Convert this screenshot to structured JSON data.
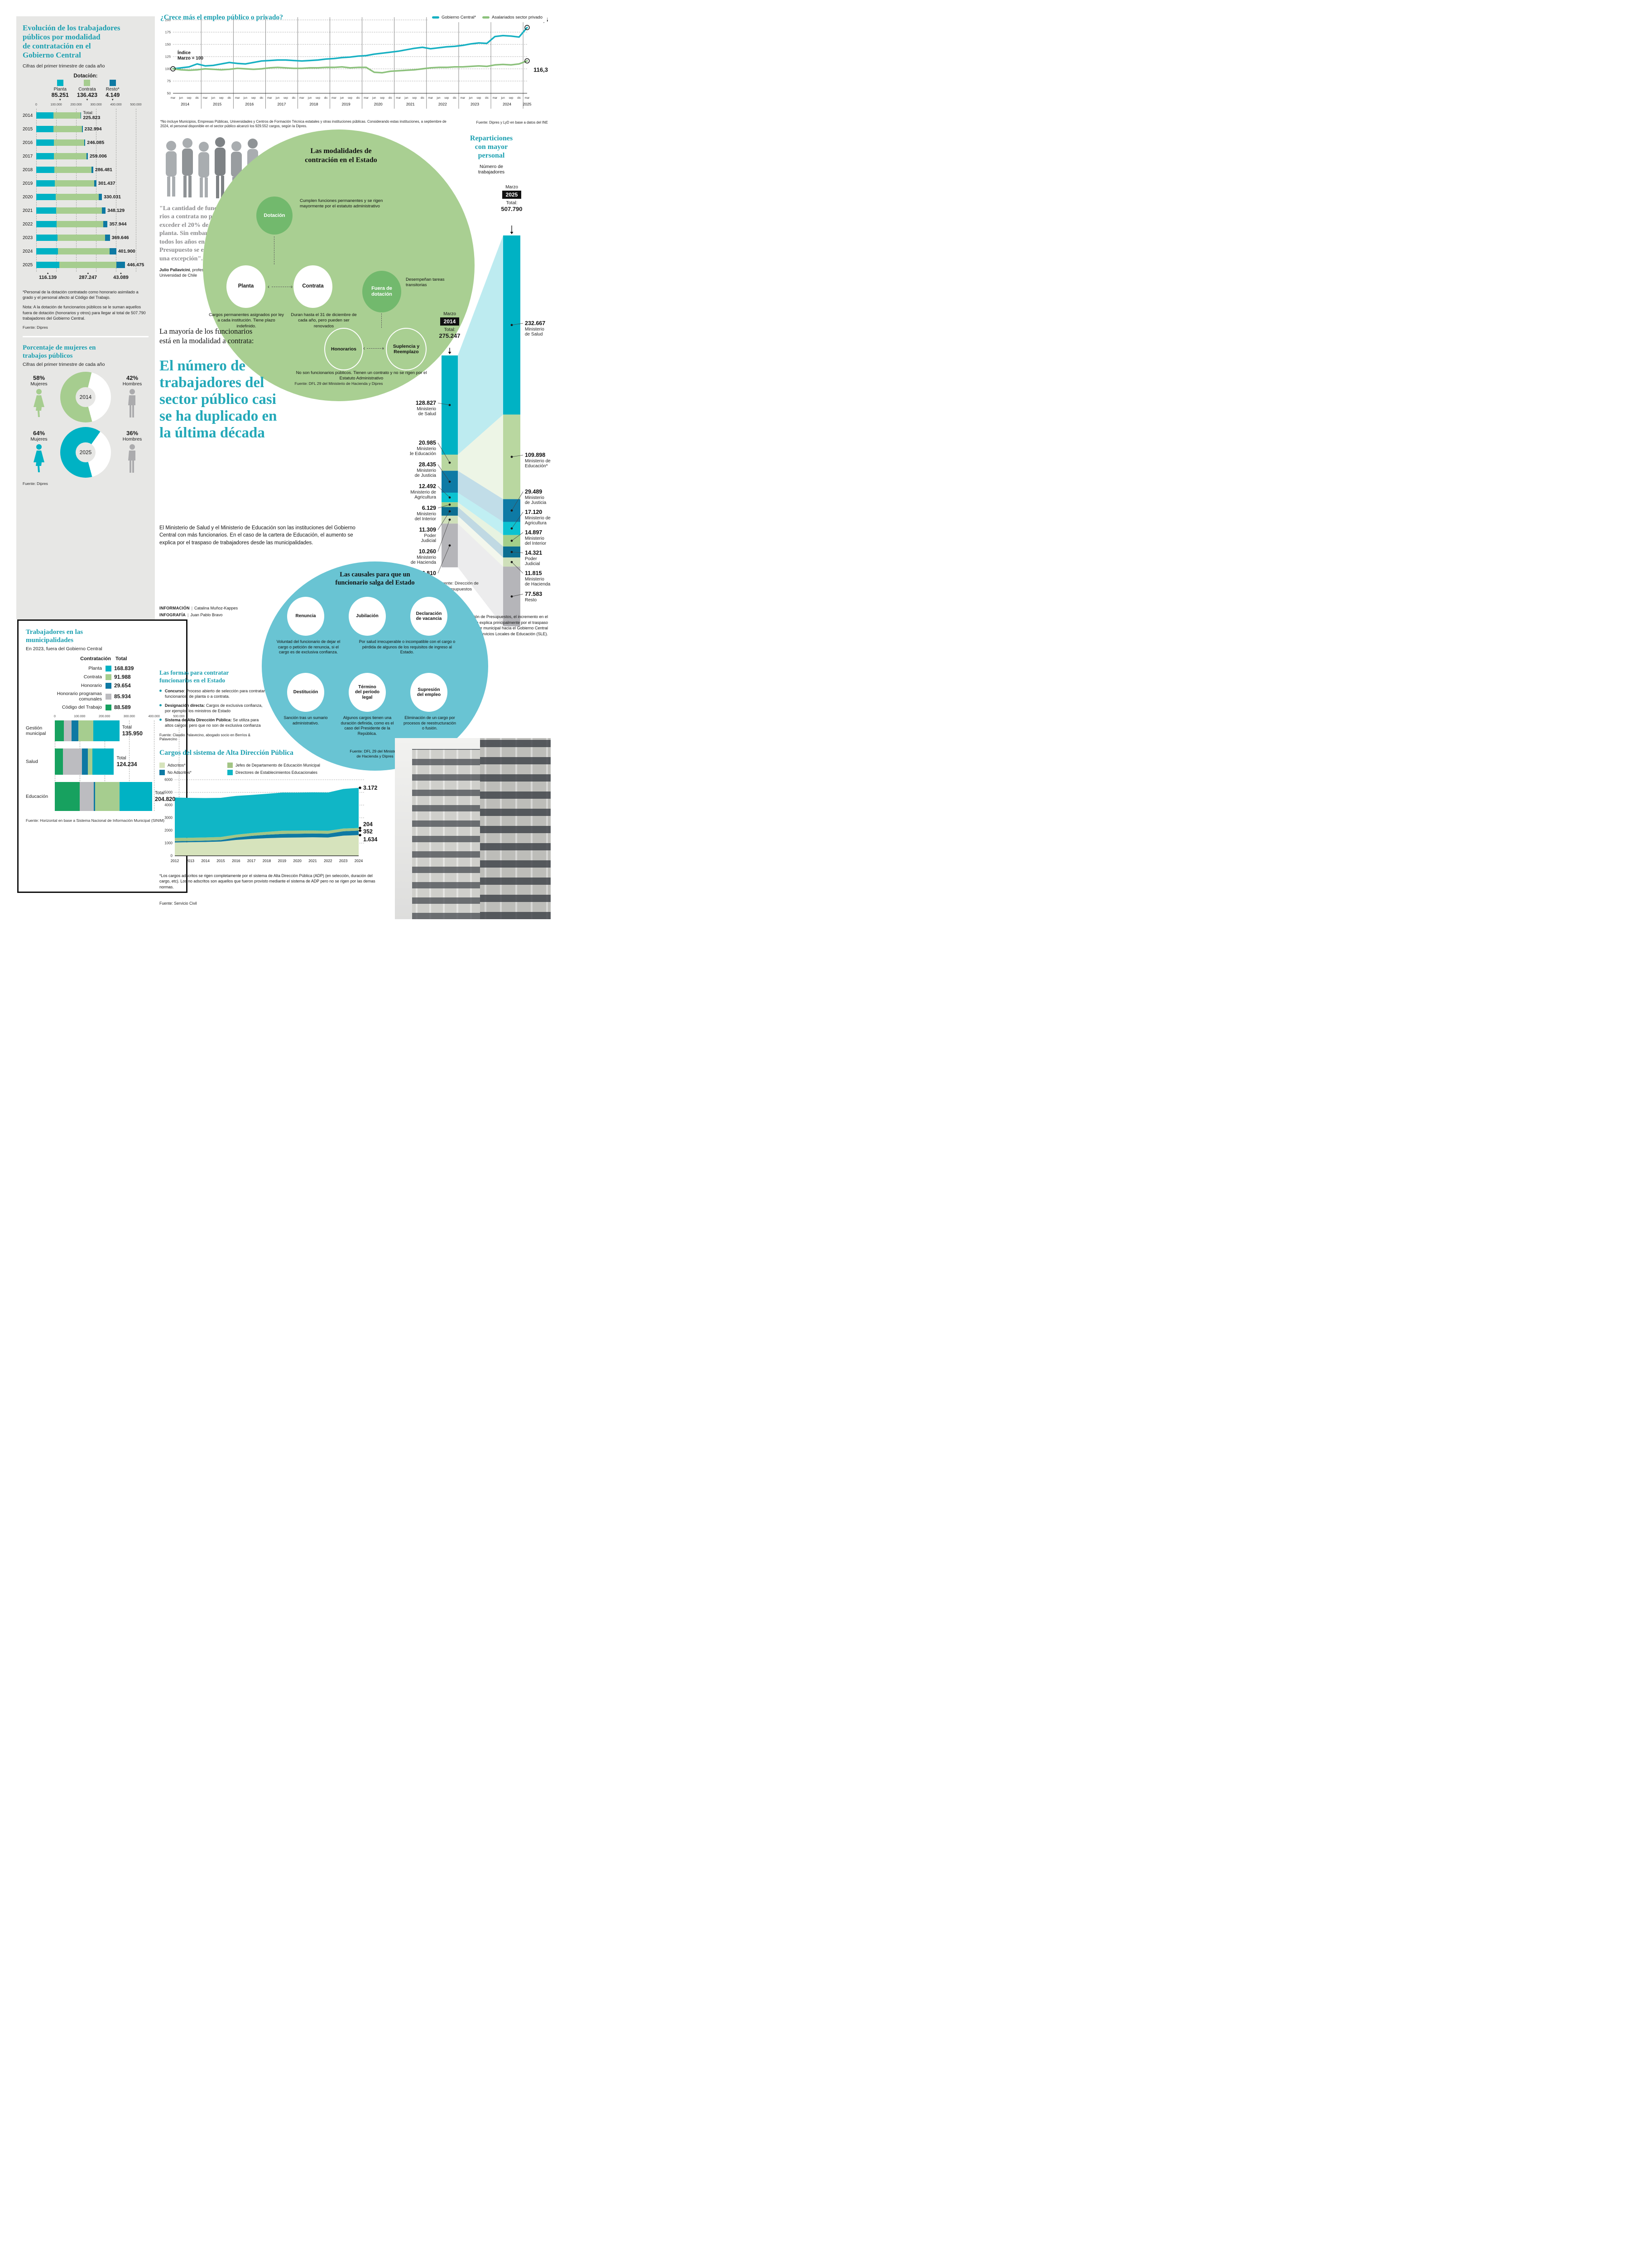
{
  "palette": {
    "teal": "#00b2c4",
    "teal_line": "#16b0c2",
    "green": "#a6cd8f",
    "dark_blue": "#0e79a3",
    "cyan": "#0cc2d1",
    "olive": "#a3c585",
    "pale_green": "#d6e3bc",
    "gray_seg": "#bcbcc0",
    "green_code": "#17a15f",
    "title_teal": "#1b9fb0",
    "blob_green": "#a9cf92",
    "blob_teal": "#69c4d3"
  },
  "evolucion": {
    "title": "Evolución de los trabajadores\npúblicos por modalidad\nde contratación en el\nGobierno Central",
    "subtitle": "Cifras del primer trimestre de cada año",
    "legend_title": "Dotación:",
    "total_label": "Total:",
    "footnote1": "*Personal de la dotación contratado como honorario asimilado a grado y el personal afecto al Código del Trabajo.",
    "footnote2": "Nota: A la dotación de funcionarios públicos se le suman aquellos fuera de dotación (honorarios y otros) para llegar al total de 507.790 trabajadores del Gobierno Central.",
    "source": "Fuente: Dipres"
  },
  "mujeres": {
    "title": "Porcentaje de mujeres en\ntrabajos públicos",
    "subtitle": "Cifras del primer trimestre de cada año",
    "source": "Fuente: Dipres",
    "d2014": {
      "pct_m": "58%",
      "lab_m": "Mujeres",
      "pct_h": "42%",
      "lab_h": "Hombres",
      "year": "2014"
    },
    "d2025": {
      "pct_m": "64%",
      "lab_m": "Mujeres",
      "pct_h": "36%",
      "lab_h": "Hombres",
      "year": "2025"
    }
  },
  "empleo": {
    "title": "¿Crece más el empleo público o privado?",
    "legend": [
      "Gobierno Central*",
      "Asalariados sector privado"
    ],
    "index_label": "Índice\nMarzo = 100",
    "footnote": "*No incluye Municipios, Empresas Públicas, Universidades y Centros de Formación Técnica estatales y otras instituciones públicas. Considerando estas instituciones, a septiembre de 2024, el personal disponible en el sector público alcanzó los 929.552 cargos, según la Dipres.",
    "source": "Fuente: Dipres y LyD en base a datos del INE"
  },
  "quote": {
    "text": "\"La cantidad de funciona-\nrios a contrata no puede\nexceder el 20% de los de\nplanta. Sin embargo,\ntodos los años en la Ley de\nPresupuesto se establece\nuna excepción\".",
    "author": "Julio Pallavicini",
    "role": ", profesor de Derecho Administrativo de la Universidad de Chile"
  },
  "modalidades": {
    "title": "Las modalidades de\ncontración en el Estado",
    "dotacion": "Dotación",
    "dotacion_desc": "Cumplen funciones permanentes y se rigen mayormente por el estatuto administrativo",
    "planta": "Planta",
    "planta_desc": "Cargos permanentes asignados por ley a cada institución. Tiene plazo indefinido.",
    "contrata": "Contrata",
    "contrata_desc": "Duran hasta el 31 de diciembre de cada año, pero pueden ser renovados",
    "fuera": "Fuera de\ndotación",
    "fuera_desc": "Desempeñan tareas transitorias",
    "honorarios": "Honorarios",
    "suplencia": "Suplencia y\nReemplazo",
    "no_func": "No son funcionarios públicos. Tienen un contrato y no se rigen por el Estatuto Administrativo",
    "source": "Fuente: DFL 29 del Ministerio de Hacienda y Dipres"
  },
  "headline": {
    "kicker": "La mayoría de los funcionarios\nestá en la modalidad a contrata:",
    "title": "El número de\ntrabajadores del\nsector público casi\nse ha duplicado en\nla última década",
    "body": "El Ministerio de Salud y el Ministerio de Educación son las instituciones del Gobierno Central con más funcionarios. En el caso de la cartera de Educación, el aumento se explica por el traspaso de trabajadores desde las municipalidades.",
    "credit1_label": "INFORMACIÓN",
    "credit1_sep": "|",
    "credit1": "Catalina Muñoz-Kappes",
    "credit2_label": "INFOGRAFÍA",
    "credit2_sep": "|",
    "credit2": "Juan Pablo Bravo"
  },
  "reparticiones": {
    "title": "Reparticiones\ncon mayor\npersonal",
    "unit": "Número de\ntrabajadores",
    "month": "Marzo",
    "total_label": "Total:",
    "source": "Fuente: Dirección de\nPresupuestos",
    "footnote": "*Según la Dirección de Presupuestos, el incremento en el Ministerio de Educación se explica principalmente por el traspaso de cargos desde el sector municipal hacia el Gobierno Central por la creación de los Servicios Locales de Educación (SLE)."
  },
  "causales": {
    "title": "Las causales para que un\nfuncionario salga del Estado",
    "items": [
      {
        "label": "Renuncia"
      },
      {
        "label": "Jubilación"
      },
      {
        "label": "Declaración\nde vacancia"
      },
      {
        "label": "Destitución"
      },
      {
        "label": "Término\ndel período\nlegal"
      },
      {
        "label": "Supresión\ndel empleo"
      }
    ],
    "desc_renuncia": "Voluntad del funcionario de dejar el cargo o petición de renuncia, si el cargo es de exclusiva confianza.",
    "desc_vacancia": "Por salud irrecuperable o incompatible con el cargo o pérdida de algunos de los requisitos de ingreso al Estado.",
    "desc_destitucion": "Sanción tras un sumario administrativo.",
    "desc_termino": "Algunos cargos tienen una duración definida, como es el caso del Presidente de la República.",
    "desc_supresion": "Eliminación de un cargo por procesos de reestructura­ción o fusión.",
    "source": "Fuente: DFL 29 del Ministerio\nde Hacienda y Dipres"
  },
  "municipalidades": {
    "title": "Trabajadores en las\nmunicipalidades",
    "subtitle": "En 2023, fuera del Gobierno Central",
    "col1": "Contratación",
    "col2": "Total",
    "total_label": "Total",
    "source": "Fuente: Horizontal en base a Sistema Nacional de Información Municipal (SINIM)"
  },
  "formas": {
    "title": "Las formas para contratar\nfuncionarios en el Estado",
    "bullets": [
      {
        "lead": "Concurso",
        "text": ": Proceso abierto de selección para contratar funcionarios, de planta o a contrata."
      },
      {
        "lead": "Designación directa:",
        "text": " Cargos de exclusiva confianza, por ejemplo, los ministros de Estado"
      },
      {
        "lead": "Sistema de Alta Dirección Pública:",
        "text": " Se utiliza para altos cargos, pero que no son de exclusiva confianza"
      }
    ],
    "source": "Fuente: Claudio Palavecino, abogado socio en Berríos & Palavecino"
  },
  "adp": {
    "title": "Cargos del sistema de Alta Dirección Pública",
    "footnote": "*Los cargos adscritos se rigen completamente por el sistema de Alta Dirección Pública (ADP) (en selección, duración del cargo, etc). Los no adscritos son aquellos que fueron provisto mediante el sistema de ADP pero no se rigen por las demas normas.",
    "source": "Fuente: Servicio Civil"
  },
  "chart_data": [
    {
      "id": "evolucion",
      "type": "bar",
      "stacked": true,
      "orientation": "horizontal",
      "title": "Evolución de los trabajadores públicos por modalidad de contratación en el Gobierno Central",
      "categories": [
        "2014",
        "2015",
        "2016",
        "2017",
        "2018",
        "2019",
        "2020",
        "2021",
        "2022",
        "2023",
        "2024",
        "2025"
      ],
      "series": [
        {
          "name": "Planta",
          "color": "#00b2c4",
          "values": [
            85251,
            86500,
            88000,
            89500,
            92000,
            94000,
            97000,
            100000,
            103000,
            106000,
            110000,
            116139
          ]
        },
        {
          "name": "Contrata",
          "color": "#a6cd8f",
          "values": [
            136423,
            142294,
            152985,
            163506,
            185081,
            196037,
            217031,
            229029,
            232944,
            239046,
            259000,
            287247
          ]
        },
        {
          "name": "Resto*",
          "color": "#0e79a3",
          "values": [
            4149,
            4200,
            5100,
            6000,
            9400,
            11400,
            16000,
            19100,
            22000,
            24600,
            32900,
            43089
          ]
        }
      ],
      "legend_values_2014": [
        "85.251",
        "136.423",
        "4.149"
      ],
      "totals": [
        225823,
        232994,
        246085,
        259006,
        286481,
        301437,
        330031,
        348129,
        357944,
        369646,
        401900,
        446475
      ],
      "totals_fmt": [
        "225.823",
        "232.994",
        "246.085",
        "259.006",
        "286.481",
        "301.437",
        "330.031",
        "348.129",
        "357.944",
        "369.646",
        "401.900",
        "446.475"
      ],
      "bar2025_fmt": [
        "116.139",
        "287.247",
        "43.089"
      ],
      "xlim": [
        0,
        500000
      ],
      "x_ticks": [
        "0",
        "100.000",
        "200.000",
        "300.000",
        "400.000",
        "500.000"
      ],
      "note": "Los desgloses de los años intermedios son estimaciones visuales; 2014 y 2025 son valores publicados."
    },
    {
      "id": "empleo",
      "type": "line",
      "title": "¿Crece más el empleo público o privado?",
      "x_years": [
        "2014",
        "2015",
        "2016",
        "2017",
        "2018",
        "2019",
        "2020",
        "2021",
        "2022",
        "2023",
        "2024",
        "2025"
      ],
      "quarters": [
        "mar",
        "jun",
        "sep",
        "dic"
      ],
      "ylim": [
        50,
        200
      ],
      "y_ticks": [
        200,
        175,
        150,
        125,
        100,
        75,
        50
      ],
      "series": [
        {
          "name": "Gobierno Central*",
          "color": "#16b0c2",
          "values": [
            100,
            102,
            104,
            110,
            106,
            107,
            110,
            113,
            111,
            110,
            113,
            116,
            117,
            118,
            118,
            117,
            116,
            117,
            118,
            120,
            121,
            123,
            124,
            126,
            127,
            130,
            132,
            134,
            136,
            139,
            142,
            144,
            141,
            143,
            145,
            146,
            148,
            151,
            153,
            152,
            166,
            168,
            167,
            165,
            184.5
          ]
        },
        {
          "name": "Asalariados sector privado",
          "color": "#8cc17c",
          "values": [
            100,
            98,
            97,
            98,
            100,
            99,
            98,
            99,
            101,
            100,
            99,
            100,
            102,
            103,
            102,
            101,
            101,
            102,
            102,
            103,
            103,
            104,
            102,
            103,
            103,
            93,
            92,
            95,
            96,
            97,
            98,
            100,
            102,
            103,
            103,
            104,
            104,
            105,
            106,
            105,
            108,
            109,
            108,
            110,
            116.3
          ]
        }
      ],
      "end_labels": [
        "184,5",
        "116,3"
      ],
      "note": "Valores trimestrales estimados de la curva; extremos publicados: 100 (mar 2014), 184,5 y 116,3 (mar 2025)."
    },
    {
      "id": "mujeres",
      "type": "pie",
      "donuts": [
        {
          "year": "2014",
          "mujeres": 58,
          "hombres": 42,
          "color": "#a6cd8f"
        },
        {
          "year": "2025",
          "mujeres": 64,
          "hombres": 36,
          "color": "#00b2c4"
        }
      ]
    },
    {
      "id": "municipalidades",
      "type": "bar",
      "stacked": true,
      "orientation": "horizontal",
      "legend": [
        {
          "label": "Planta",
          "value_fmt": "168.839",
          "color": "#00b2c4"
        },
        {
          "label": "Contrata",
          "value_fmt": "91.988",
          "color": "#a6cd8f"
        },
        {
          "label": "Honorario",
          "value_fmt": "29.654",
          "color": "#0e79a3"
        },
        {
          "label": "Honorario programas\ncomunales",
          "value_fmt": "85.934",
          "color": "#bcbcc0"
        },
        {
          "label": "Código del Trabajo",
          "value_fmt": "88.589",
          "color": "#17a15f"
        }
      ],
      "segment_order": [
        "Código del Trabajo",
        "Honorario programas comunales",
        "Honorario",
        "Contrata",
        "Planta"
      ],
      "segment_colors": [
        "#17a15f",
        "#bcbcc0",
        "#0e79a3",
        "#a6cd8f",
        "#00b2c4"
      ],
      "rows": [
        {
          "label": "Gestión\nmunicipal",
          "total": 135950,
          "total_fmt": "135.950",
          "segments": [
            19000,
            16000,
            15000,
            30950,
            55000
          ]
        },
        {
          "label": "Salud",
          "total": 124234,
          "total_fmt": "124.234",
          "segments": [
            17234,
            40000,
            12000,
            10000,
            45000
          ]
        },
        {
          "label": "Educación",
          "total": 204820,
          "total_fmt": "204.820",
          "segments": [
            52355,
            29934,
            2654,
            51038,
            68839
          ]
        }
      ],
      "x_ticks": [
        "0",
        "100.000",
        "200.000",
        "300.000",
        "400.000",
        "500.000"
      ],
      "note": "Los segmentos por área son estimaciones; los totales por fila y por tipo de contratación son publicados."
    },
    {
      "id": "adp",
      "type": "area",
      "stacked": true,
      "categories": [
        2012,
        2013,
        2014,
        2015,
        2016,
        2017,
        2018,
        2019,
        2020,
        2021,
        2022,
        2023,
        2024
      ],
      "series": [
        {
          "name": "Adscritos*",
          "color": "#d6e3bc",
          "values": [
            1050,
            1070,
            1090,
            1120,
            1250,
            1330,
            1390,
            1430,
            1440,
            1460,
            1440,
            1590,
            1634
          ]
        },
        {
          "name": "No Adscritos*",
          "color": "#0e79a3",
          "values": [
            100,
            100,
            105,
            115,
            190,
            240,
            270,
            295,
            300,
            300,
            300,
            345,
            352
          ]
        },
        {
          "name": "Jefes de Departamento de Educación Municipal",
          "color": "#a3c585",
          "values": [
            260,
            255,
            250,
            245,
            225,
            220,
            230,
            250,
            245,
            235,
            230,
            215,
            204
          ]
        },
        {
          "name": "Directores de Establecimientos Educacionales",
          "color": "#10b6c6",
          "values": [
            3190,
            3140,
            3110,
            3090,
            3060,
            3010,
            3000,
            3010,
            3000,
            3010,
            3020,
            3120,
            3172
          ]
        }
      ],
      "end_labels_fmt": [
        "3.172",
        "204",
        "352",
        "1.634"
      ],
      "ylim": [
        0,
        6000
      ],
      "y_ticks": [
        0,
        1000,
        2000,
        3000,
        4000,
        5000,
        6000
      ],
      "note": "Series intermedias estimadas; valores finales 2024 publicados: 1.634 / 352 / 204 / 3.172."
    },
    {
      "id": "reparticiones",
      "type": "comparison-columns",
      "unit": "Número de trabajadores",
      "col2014": {
        "month": "Marzo",
        "year": "2014",
        "total": 275247,
        "total_fmt": "275.247"
      },
      "col2025": {
        "month": "Marzo",
        "year": "2025",
        "total": 507790,
        "total_fmt": "507.790"
      },
      "items": [
        {
          "name": [
            "Ministerio",
            "de Salud"
          ],
          "color": "#00b2c4",
          "v2014": 128827,
          "f2014": "128.827",
          "v2025": 232667,
          "f2025": "232.667"
        },
        {
          "name": [
            "Ministerio",
            "de Educación"
          ],
          "name2025": [
            "Ministerio de",
            "Educación*"
          ],
          "color": "#b9d7a0",
          "v2014": 20985,
          "f2014": "20.985",
          "v2025": 109898,
          "f2025": "109.898"
        },
        {
          "name": [
            "Ministerio",
            "de Justicia"
          ],
          "color": "#0e7aa5",
          "v2014": 28435,
          "f2014": "28.435",
          "v2025": 29489,
          "f2025": "29.489"
        },
        {
          "name": [
            "Ministerio de",
            "Agricultura"
          ],
          "color": "#0cc2d1",
          "v2014": 12492,
          "f2014": "12.492",
          "v2025": 17120,
          "f2025": "17.120"
        },
        {
          "name": [
            "Ministerio",
            "del Interior"
          ],
          "color": "#a4cf8a",
          "v2014": 6129,
          "f2014": "6.129",
          "v2025": 14897,
          "f2025": "14.897"
        },
        {
          "name": [
            "Poder",
            "Judicial"
          ],
          "color": "#0c6e91",
          "v2014": 11309,
          "f2014": "11.309",
          "v2025": 14321,
          "f2025": "14.321"
        },
        {
          "name": [
            "Ministerio",
            "de Hacienda"
          ],
          "color": "#cfe0ba",
          "v2014": 10260,
          "f2014": "10.260",
          "v2025": 11815,
          "f2025": "11.815"
        },
        {
          "name": [
            "Resto"
          ],
          "color": "#b5b5b9",
          "v2014": 56810,
          "f2014": "56.810",
          "v2025": 77583,
          "f2025": "77.583"
        }
      ]
    }
  ]
}
